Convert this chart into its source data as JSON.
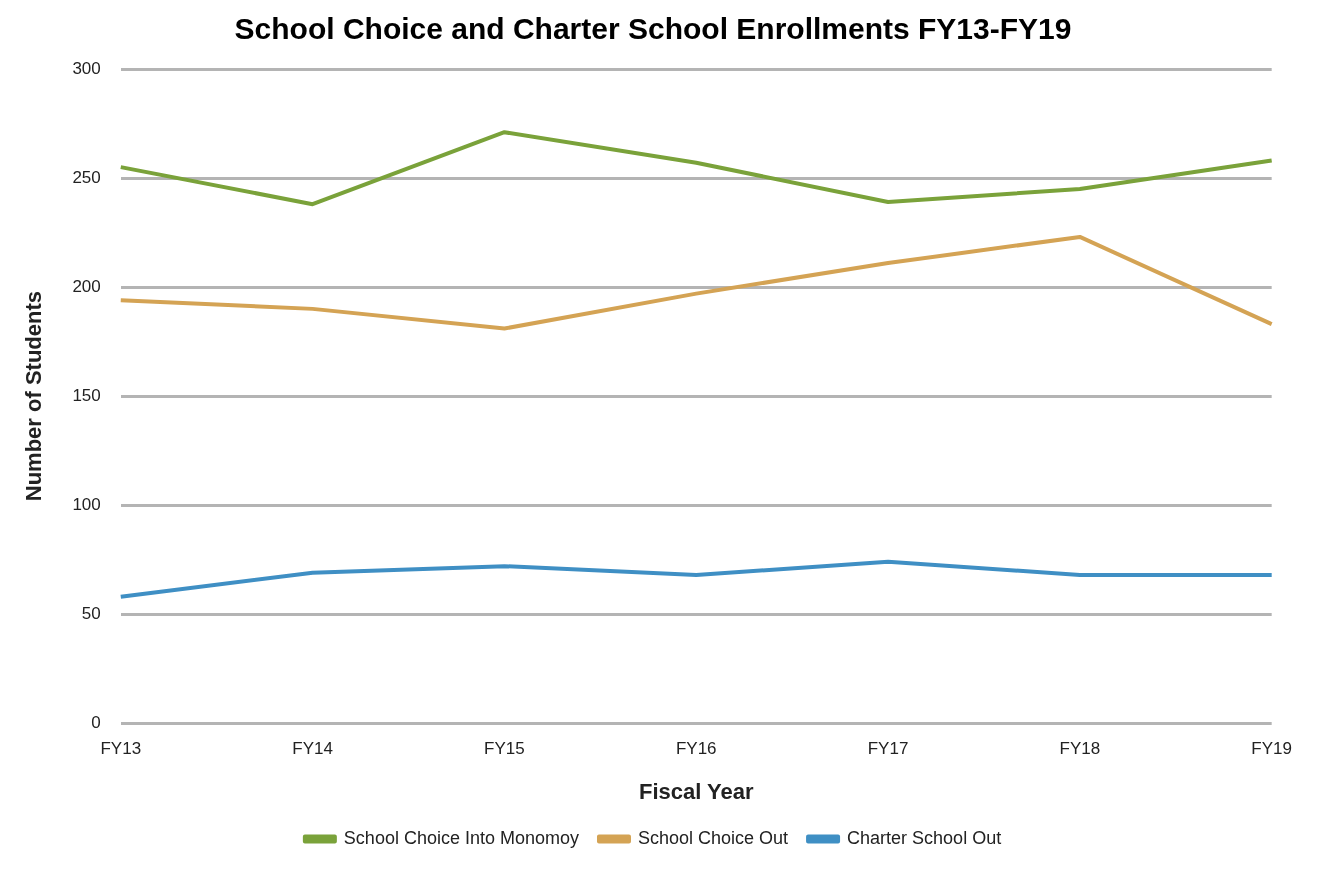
{
  "chart_data": {
    "type": "line",
    "title": "School Choice and Charter School Enrollments FY13-FY19",
    "xlabel": "Fiscal Year",
    "ylabel": "Number of Students",
    "categories": [
      "FY13",
      "FY14",
      "FY15",
      "FY16",
      "FY17",
      "FY18",
      "FY19"
    ],
    "series": [
      {
        "name": "School Choice Into Monomoy",
        "color": "#7aa23a",
        "values": [
          255,
          238,
          271,
          257,
          239,
          245,
          258
        ]
      },
      {
        "name": "School Choice Out",
        "color": "#d4a354",
        "values": [
          194,
          190,
          181,
          197,
          211,
          223,
          183
        ]
      },
      {
        "name": "Charter School Out",
        "color": "#3f8fc4",
        "values": [
          58,
          69,
          72,
          68,
          74,
          68,
          68
        ]
      }
    ],
    "ylim": [
      0,
      300
    ],
    "yticks": [
      0,
      50,
      100,
      150,
      200,
      250,
      300
    ],
    "grid": "y",
    "legend": "bottom",
    "marker": "none",
    "line_style": "solid"
  }
}
